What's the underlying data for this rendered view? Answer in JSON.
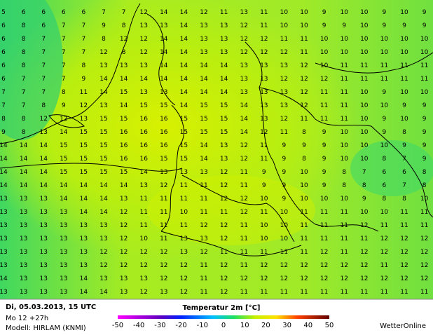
{
  "map": {
    "rows": [
      [
        5,
        6,
        6,
        6,
        6,
        7,
        7,
        12,
        14,
        14,
        12,
        11,
        13,
        11,
        10,
        10,
        9,
        10,
        10,
        9,
        10,
        9
      ],
      [
        6,
        8,
        6,
        7,
        7,
        9,
        8,
        13,
        13,
        14,
        13,
        13,
        12,
        11,
        10,
        10,
        9,
        9,
        10,
        9,
        9,
        9
      ],
      [
        6,
        8,
        7,
        7,
        7,
        8,
        12,
        12,
        14,
        14,
        13,
        13,
        12,
        12,
        11,
        11,
        10,
        10,
        10,
        10,
        10,
        10
      ],
      [
        6,
        8,
        7,
        7,
        7,
        12,
        8,
        12,
        14,
        14,
        13,
        13,
        12,
        12,
        12,
        11,
        10,
        10,
        10,
        10,
        10,
        10
      ],
      [
        6,
        8,
        7,
        7,
        8,
        13,
        13,
        13,
        14,
        14,
        14,
        14,
        13,
        13,
        13,
        12,
        10,
        11,
        11,
        11,
        11,
        11
      ],
      [
        6,
        7,
        7,
        7,
        9,
        14,
        14,
        14,
        14,
        14,
        14,
        14,
        13,
        13,
        12,
        12,
        12,
        11,
        11,
        11,
        11,
        11
      ],
      [
        7,
        7,
        7,
        8,
        11,
        14,
        15,
        13,
        13,
        14,
        14,
        14,
        13,
        13,
        13,
        12,
        11,
        11,
        10,
        9,
        10,
        10
      ],
      [
        7,
        7,
        8,
        9,
        12,
        13,
        14,
        15,
        15,
        14,
        15,
        15,
        14,
        13,
        13,
        12,
        11,
        11,
        10,
        10,
        9,
        9
      ],
      [
        8,
        8,
        12,
        12,
        13,
        15,
        15,
        16,
        16,
        15,
        15,
        15,
        14,
        13,
        12,
        11,
        11,
        11,
        10,
        9,
        10,
        9
      ],
      [
        9,
        8,
        13,
        14,
        15,
        15,
        16,
        16,
        16,
        15,
        15,
        15,
        14,
        12,
        11,
        8,
        9,
        10,
        10,
        9,
        8,
        9
      ],
      [
        14,
        14,
        14,
        15,
        15,
        15,
        16,
        16,
        16,
        15,
        14,
        13,
        12,
        11,
        9,
        9,
        9,
        10,
        10,
        10,
        9,
        9
      ],
      [
        14,
        14,
        14,
        15,
        15,
        15,
        16,
        16,
        15,
        15,
        14,
        13,
        12,
        11,
        9,
        8,
        9,
        10,
        10,
        8,
        7,
        9
      ],
      [
        14,
        14,
        14,
        15,
        15,
        15,
        15,
        14,
        13,
        13,
        13,
        12,
        11,
        9,
        9,
        10,
        9,
        8,
        7,
        6,
        6,
        8
      ],
      [
        14,
        14,
        14,
        14,
        14,
        14,
        14,
        13,
        12,
        11,
        11,
        12,
        11,
        9,
        9,
        10,
        9,
        8,
        8,
        6,
        7,
        8
      ],
      [
        13,
        13,
        13,
        14,
        14,
        14,
        13,
        11,
        11,
        11,
        11,
        12,
        12,
        10,
        9,
        10,
        10,
        10,
        9,
        8,
        8,
        10
      ],
      [
        13,
        13,
        13,
        13,
        14,
        14,
        12,
        11,
        11,
        10,
        11,
        11,
        12,
        11,
        10,
        11,
        11,
        11,
        10,
        10,
        11,
        11
      ],
      [
        13,
        13,
        13,
        13,
        13,
        13,
        12,
        11,
        11,
        11,
        12,
        12,
        11,
        10,
        10,
        11,
        11,
        11,
        12,
        11,
        11,
        11
      ],
      [
        13,
        13,
        13,
        13,
        13,
        13,
        12,
        10,
        11,
        13,
        13,
        12,
        11,
        10,
        10,
        11,
        11,
        11,
        11,
        12,
        12,
        12
      ],
      [
        13,
        13,
        13,
        13,
        13,
        12,
        12,
        12,
        12,
        13,
        12,
        11,
        11,
        11,
        11,
        11,
        12,
        11,
        12,
        12,
        12,
        12
      ],
      [
        13,
        13,
        13,
        13,
        13,
        12,
        12,
        12,
        12,
        12,
        11,
        12,
        11,
        12,
        12,
        12,
        12,
        12,
        12,
        11,
        12,
        12
      ],
      [
        14,
        13,
        13,
        13,
        14,
        13,
        13,
        13,
        12,
        12,
        11,
        12,
        12,
        12,
        12,
        12,
        12,
        12,
        12,
        12,
        12,
        12
      ],
      [
        13,
        13,
        13,
        13,
        14,
        14,
        13,
        12,
        13,
        12,
        11,
        12,
        11,
        11,
        11,
        11,
        11,
        11,
        11,
        11,
        11,
        11
      ]
    ]
  },
  "footer": {
    "date": "Di, 05.03.2013, 15 UTC",
    "run": "Mo 12 +27h",
    "model": "Modell: HIRLAM (KNMI)",
    "title": "Temperatur 2m [°C]",
    "scale": [
      -50,
      -40,
      -30,
      -20,
      -10,
      0,
      10,
      20,
      30,
      40,
      50
    ],
    "brand": "WetterOnline"
  }
}
